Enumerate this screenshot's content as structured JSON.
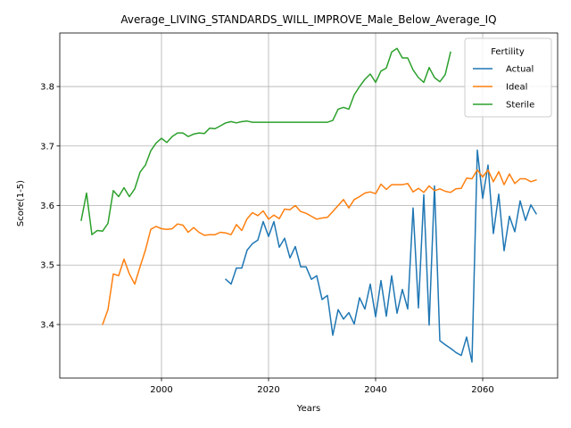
{
  "chart_data": {
    "type": "line",
    "title": "Average_LIVING_STANDARDS_WILL_IMPROVE_Male_Below_Average_IQ",
    "xlabel": "Years",
    "ylabel": "Score(1-5)",
    "xlim": [
      1981,
      2074
    ],
    "ylim": [
      3.31,
      3.89
    ],
    "xticks": [
      2000,
      2020,
      2040,
      2060
    ],
    "yticks": [
      3.4,
      3.5,
      3.6,
      3.7,
      3.8
    ],
    "grid": true,
    "legend": {
      "title": "Fertility",
      "placement": "top-right"
    },
    "series": [
      {
        "name": "Actual",
        "color": "#1f77b4",
        "x": [
          2012,
          2013,
          2014,
          2015,
          2016,
          2017,
          2018,
          2019,
          2020,
          2021,
          2022,
          2023,
          2024,
          2025,
          2026,
          2027,
          2028,
          2029,
          2030,
          2031,
          2032,
          2033,
          2034,
          2035,
          2036,
          2037,
          2038,
          2039,
          2040,
          2041,
          2042,
          2043,
          2044,
          2045,
          2046,
          2047,
          2048,
          2049,
          2050,
          2051,
          2052,
          2053,
          2054,
          2055,
          2056,
          2057,
          2058,
          2059,
          2060,
          2061,
          2062,
          2063,
          2064,
          2065,
          2066,
          2067,
          2068,
          2069,
          2070
        ],
        "values": [
          3.476,
          3.468,
          3.495,
          3.495,
          3.525,
          3.536,
          3.542,
          3.573,
          3.548,
          3.573,
          3.53,
          3.545,
          3.512,
          3.531,
          3.497,
          3.497,
          3.476,
          3.482,
          3.442,
          3.449,
          3.382,
          3.425,
          3.409,
          3.42,
          3.401,
          3.445,
          3.426,
          3.468,
          3.413,
          3.474,
          3.414,
          3.482,
          3.419,
          3.459,
          3.426,
          3.596,
          3.428,
          3.618,
          3.399,
          3.633,
          3.373,
          3.366,
          3.36,
          3.353,
          3.348,
          3.379,
          3.337,
          3.693,
          3.612,
          3.668,
          3.553,
          3.619,
          3.524,
          3.582,
          3.556,
          3.608,
          3.575,
          3.601,
          3.586
        ]
      },
      {
        "name": "Ideal",
        "color": "#ff7f0e",
        "x": [
          1989,
          1990,
          1991,
          1992,
          1993,
          1994,
          1995,
          1996,
          1997,
          1998,
          1999,
          2000,
          2001,
          2002,
          2003,
          2004,
          2005,
          2006,
          2007,
          2008,
          2009,
          2010,
          2011,
          2012,
          2013,
          2014,
          2015,
          2016,
          2017,
          2018,
          2019,
          2020,
          2021,
          2022,
          2023,
          2024,
          2025,
          2026,
          2027,
          2028,
          2029,
          2030,
          2031,
          2032,
          2033,
          2034,
          2035,
          2036,
          2037,
          2038,
          2039,
          2040,
          2041,
          2042,
          2043,
          2044,
          2045,
          2046,
          2047,
          2048,
          2049,
          2050,
          2051,
          2052,
          2053,
          2054,
          2055,
          2056,
          2057,
          2058,
          2059,
          2060,
          2061,
          2062,
          2063,
          2064,
          2065,
          2066,
          2067,
          2068,
          2069,
          2070
        ],
        "values": [
          3.4,
          3.425,
          3.485,
          3.482,
          3.51,
          3.485,
          3.468,
          3.497,
          3.525,
          3.56,
          3.565,
          3.561,
          3.56,
          3.561,
          3.569,
          3.567,
          3.555,
          3.563,
          3.555,
          3.55,
          3.551,
          3.551,
          3.555,
          3.554,
          3.551,
          3.568,
          3.558,
          3.578,
          3.588,
          3.583,
          3.591,
          3.577,
          3.584,
          3.578,
          3.594,
          3.593,
          3.6,
          3.59,
          3.587,
          3.582,
          3.577,
          3.579,
          3.58,
          3.59,
          3.6,
          3.61,
          3.596,
          3.61,
          3.615,
          3.621,
          3.623,
          3.62,
          3.636,
          3.627,
          3.635,
          3.635,
          3.635,
          3.637,
          3.623,
          3.629,
          3.622,
          3.633,
          3.625,
          3.628,
          3.624,
          3.622,
          3.628,
          3.629,
          3.646,
          3.645,
          3.66,
          3.648,
          3.66,
          3.64,
          3.657,
          3.635,
          3.653,
          3.637,
          3.645,
          3.645,
          3.64,
          3.643
        ]
      },
      {
        "name": "Sterile",
        "color": "#2ca02c",
        "x": [
          1985,
          1986,
          1987,
          1988,
          1989,
          1990,
          1991,
          1992,
          1993,
          1994,
          1995,
          1996,
          1997,
          1998,
          1999,
          2000,
          2001,
          2002,
          2003,
          2004,
          2005,
          2006,
          2007,
          2008,
          2009,
          2010,
          2011,
          2012,
          2013,
          2014,
          2015,
          2016,
          2017,
          2018,
          2019,
          2020,
          2021,
          2022,
          2023,
          2024,
          2025,
          2026,
          2027,
          2028,
          2029,
          2030,
          2031,
          2032,
          2033,
          2034,
          2035,
          2036,
          2037,
          2038,
          2039,
          2040,
          2041,
          2042,
          2043,
          2044,
          2045,
          2046,
          2047,
          2048,
          2049,
          2050,
          2051,
          2052,
          2053,
          2054
        ],
        "values": [
          3.575,
          3.621,
          3.551,
          3.558,
          3.557,
          3.57,
          3.625,
          3.615,
          3.63,
          3.615,
          3.628,
          3.656,
          3.668,
          3.692,
          3.705,
          3.713,
          3.706,
          3.716,
          3.722,
          3.722,
          3.716,
          3.72,
          3.722,
          3.721,
          3.73,
          3.729,
          3.734,
          3.739,
          3.741,
          3.739,
          3.741,
          3.742,
          3.74,
          3.74,
          3.74,
          3.74,
          3.74,
          3.74,
          3.74,
          3.74,
          3.74,
          3.74,
          3.74,
          3.74,
          3.74,
          3.74,
          3.74,
          3.743,
          3.762,
          3.765,
          3.762,
          3.786,
          3.8,
          3.812,
          3.821,
          3.807,
          3.826,
          3.831,
          3.858,
          3.864,
          3.848,
          3.848,
          3.828,
          3.815,
          3.807,
          3.832,
          3.815,
          3.808,
          3.82,
          3.858
        ]
      }
    ]
  }
}
